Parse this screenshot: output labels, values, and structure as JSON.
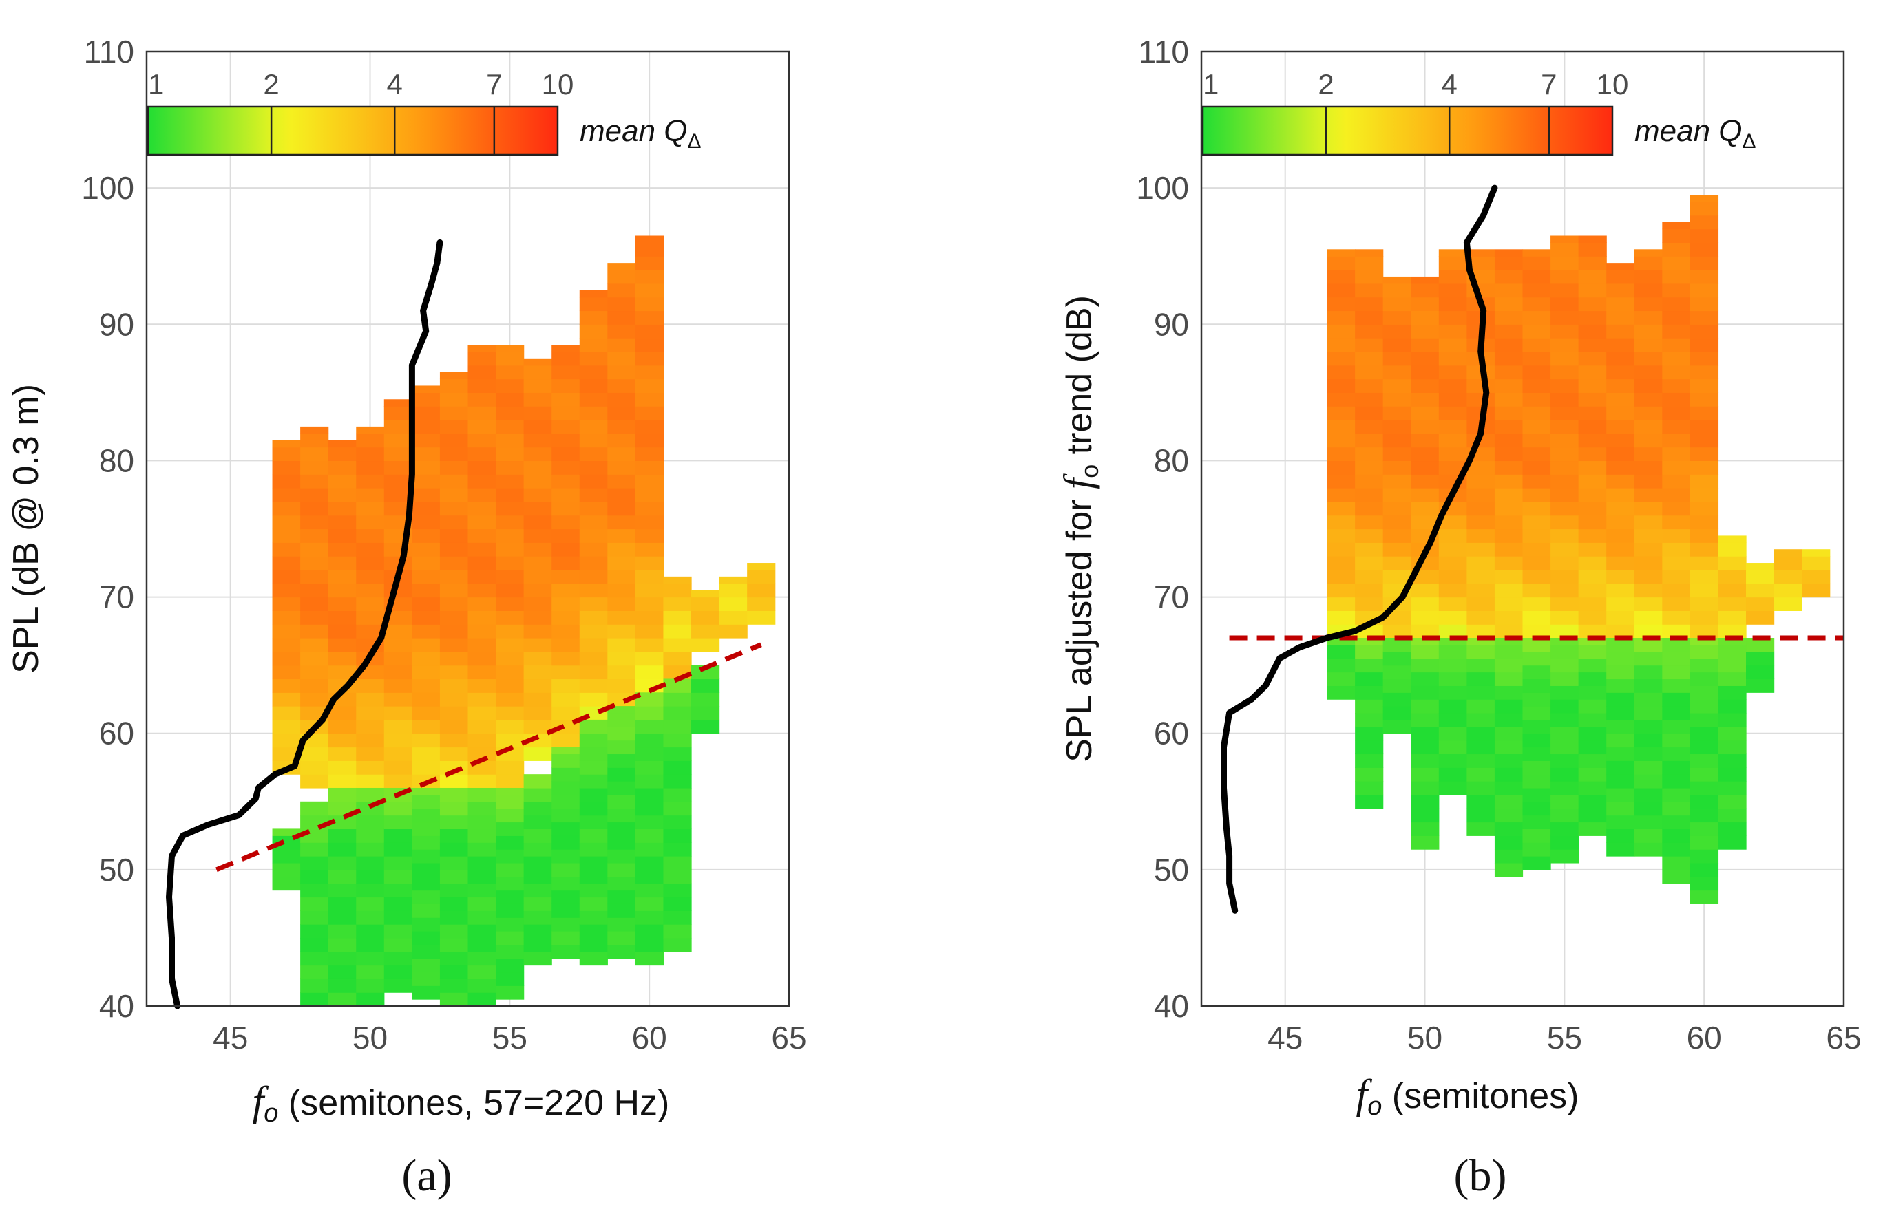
{
  "chart_data": [
    {
      "panel": "a",
      "type": "heatmap",
      "panel_label": "(a)",
      "xlabel_italic": "f",
      "xlabel_sub": "o",
      "xlabel_rest": " (semitones, 57=220 Hz)",
      "ylabel": "SPL (dB @ 0.3 m)",
      "xlim": [
        42,
        65
      ],
      "ylim": [
        40,
        110
      ],
      "xticks": [
        "45",
        "50",
        "55",
        "60",
        "65"
      ],
      "yticks": [
        "40",
        "50",
        "60",
        "70",
        "80",
        "90",
        "100",
        "110"
      ],
      "grid": true,
      "colorbar": {
        "title": "mean Q",
        "title_sub": "Δ",
        "ticks": [
          "1",
          "2",
          "4",
          "7",
          "10"
        ],
        "placement": "top-left",
        "colors": [
          "#22dd33",
          "#f5f520",
          "#ff9a10",
          "#ff2a10"
        ]
      },
      "threshold_line": {
        "style": "dashed",
        "color": "#c00000",
        "from": [
          44.5,
          50
        ],
        "to": [
          64,
          66.5
        ]
      },
      "boundary_curve": {
        "color": "#000000",
        "points": [
          [
            43.1,
            40
          ],
          [
            42.9,
            42
          ],
          [
            42.9,
            45
          ],
          [
            42.8,
            48
          ],
          [
            42.9,
            51
          ],
          [
            43.3,
            52.5
          ],
          [
            44.2,
            53.3
          ],
          [
            45.3,
            54
          ],
          [
            45.9,
            55.2
          ],
          [
            46,
            56
          ],
          [
            46.6,
            57
          ],
          [
            47.3,
            57.6
          ],
          [
            47.6,
            59.5
          ],
          [
            48.3,
            61
          ],
          [
            48.7,
            62.5
          ],
          [
            49.2,
            63.5
          ],
          [
            49.8,
            65
          ],
          [
            50.4,
            67
          ],
          [
            50.8,
            70
          ],
          [
            51.2,
            73
          ],
          [
            51.4,
            76
          ],
          [
            51.5,
            79
          ],
          [
            51.5,
            83
          ],
          [
            51.5,
            87
          ],
          [
            52,
            89.5
          ],
          [
            51.9,
            91
          ],
          [
            52.2,
            93
          ],
          [
            52.4,
            94.5
          ],
          [
            52.5,
            96
          ]
        ]
      },
      "regions": [
        {
          "value": 4.5,
          "col_edges": [
            46.5,
            47.5,
            48.5,
            49.5,
            50.5,
            51.5,
            52.5,
            53.5,
            54.5,
            55.5,
            56.5,
            57.5,
            58.5,
            59.5,
            60.5
          ],
          "y_from": [
            57,
            56,
            55,
            55,
            55,
            55,
            55,
            55,
            56,
            58,
            59,
            61,
            62,
            63
          ],
          "y_to": [
            81.5,
            82.5,
            81.5,
            82.5,
            84.5,
            85.5,
            86.5,
            88.5,
            88.5,
            87.5,
            88.5,
            92.5,
            94.5,
            96.5
          ]
        },
        {
          "value": 3.2,
          "col_edges": [
            60.5,
            61.5,
            62.5,
            63.5,
            64.5
          ],
          "y_from": [
            64,
            66,
            67,
            68
          ],
          "y_to": [
            71.5,
            70.5,
            71.5,
            72.5
          ]
        },
        {
          "value": 1.2,
          "col_edges": [
            46.5,
            47.5,
            48.5,
            49.5,
            50.5,
            51.5,
            52.5,
            53.5,
            54.5,
            55.5,
            56.5,
            57.5,
            58.5,
            59.5,
            60.5,
            61.5,
            62.5
          ],
          "y_from": [
            48.5,
            40,
            40,
            40,
            41,
            40.5,
            40,
            40,
            40.5,
            43,
            43.5,
            43,
            43.5,
            43,
            44,
            60,
            62
          ],
          "y_to": [
            53,
            55,
            56,
            56,
            56,
            56,
            56,
            56,
            56,
            57,
            59,
            61,
            62,
            63,
            64,
            65,
            66
          ]
        }
      ]
    },
    {
      "panel": "b",
      "type": "heatmap",
      "panel_label": "(b)",
      "xlabel_italic": "f",
      "xlabel_sub": "o",
      "xlabel_rest": " (semitones)",
      "ylabel_pre": "SPL adjusted for ",
      "ylabel_italic": "f",
      "ylabel_sub": "o",
      "ylabel_post": " trend (dB)",
      "xlim": [
        42,
        65
      ],
      "ylim": [
        40,
        110
      ],
      "xticks": [
        "45",
        "50",
        "55",
        "60",
        "65"
      ],
      "yticks": [
        "40",
        "50",
        "60",
        "70",
        "80",
        "90",
        "100",
        "110"
      ],
      "grid": true,
      "colorbar": {
        "title": "mean Q",
        "title_sub": "Δ",
        "ticks": [
          "1",
          "2",
          "4",
          "7",
          "10"
        ],
        "placement": "top-left",
        "colors": [
          "#22dd33",
          "#f5f520",
          "#ff9a10",
          "#ff2a10"
        ]
      },
      "threshold_line": {
        "style": "dashed",
        "color": "#c00000",
        "from": [
          43,
          67
        ],
        "to": [
          65,
          67
        ]
      },
      "boundary_curve": {
        "color": "#000000",
        "points": [
          [
            43.2,
            47
          ],
          [
            43,
            49
          ],
          [
            43,
            51
          ],
          [
            42.9,
            53
          ],
          [
            42.8,
            56
          ],
          [
            42.8,
            59
          ],
          [
            43,
            61.5
          ],
          [
            43.8,
            62.5
          ],
          [
            44.3,
            63.5
          ],
          [
            44.8,
            65.5
          ],
          [
            45.5,
            66.3
          ],
          [
            46.5,
            67
          ],
          [
            47.5,
            67.5
          ],
          [
            48.5,
            68.5
          ],
          [
            49.2,
            70
          ],
          [
            49.7,
            72
          ],
          [
            50.2,
            74
          ],
          [
            50.6,
            76
          ],
          [
            51.1,
            78
          ],
          [
            51.6,
            80
          ],
          [
            52,
            82
          ],
          [
            52.2,
            85
          ],
          [
            52,
            88
          ],
          [
            52.1,
            91
          ],
          [
            51.6,
            94
          ],
          [
            51.5,
            96
          ],
          [
            52.1,
            98
          ],
          [
            52.5,
            100
          ]
        ]
      },
      "regions": [
        {
          "value": 4.5,
          "col_edges": [
            46.5,
            47.5,
            48.5,
            49.5,
            50.5,
            51.5,
            52.5,
            53.5,
            54.5,
            55.5,
            56.5,
            57.5,
            58.5,
            59.5,
            60.5
          ],
          "y_from": [
            67,
            67,
            67,
            67,
            67,
            67,
            67,
            67,
            67,
            67,
            67,
            67,
            67,
            67
          ],
          "y_to": [
            95.5,
            95.5,
            93.5,
            93.5,
            95.5,
            95.5,
            95.5,
            95.5,
            96.5,
            96.5,
            94.5,
            95.5,
            97.5,
            99.5
          ]
        },
        {
          "value": 3.2,
          "col_edges": [
            60.5,
            61.5,
            62.5,
            63.5,
            64.5
          ],
          "y_from": [
            67,
            68,
            69,
            70
          ],
          "y_to": [
            74.5,
            72.5,
            73.5,
            73.5
          ]
        },
        {
          "value": 1.2,
          "col_edges": [
            46.5,
            47.5,
            48.5,
            49.5,
            50.5,
            51.5,
            52.5,
            53.5,
            54.5,
            55.5,
            56.5,
            57.5,
            58.5,
            59.5,
            60.5,
            61.5,
            62.5
          ],
          "y_from": [
            62.5,
            54.5,
            60,
            51.5,
            55.5,
            52.5,
            49.5,
            50,
            50.5,
            52.5,
            51,
            51,
            49,
            47.5,
            51.5,
            63,
            65.5
          ],
          "y_to": [
            67,
            67,
            67,
            67,
            67,
            67,
            67,
            67,
            67,
            67,
            67,
            67,
            67,
            67,
            67,
            67,
            67
          ]
        }
      ]
    }
  ]
}
